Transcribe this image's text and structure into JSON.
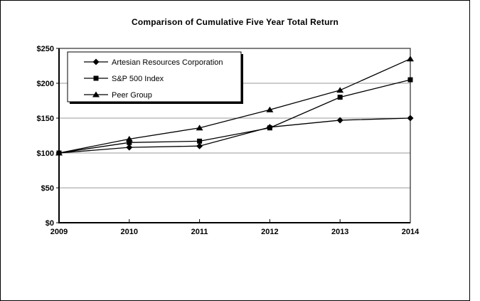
{
  "title": "Comparison of Cumulative Five Year Total Return",
  "chart_data": {
    "type": "line",
    "title": "Comparison of Cumulative Five Year Total Return",
    "categories": [
      "2009",
      "2010",
      "2011",
      "2012",
      "2013",
      "2014"
    ],
    "series": [
      {
        "name": "Artesian Resources Corporation",
        "marker": "diamond",
        "values": [
          100,
          108,
          110,
          137,
          147,
          150
        ]
      },
      {
        "name": "S&P 500 Index",
        "marker": "square",
        "values": [
          100,
          115,
          117,
          136,
          180,
          205
        ]
      },
      {
        "name": "Peer Group",
        "marker": "triangle",
        "values": [
          100,
          120,
          136,
          162,
          190,
          235
        ]
      }
    ],
    "xlabel": "",
    "ylabel": "",
    "ylim": [
      0,
      250
    ],
    "ytick_step": 50,
    "ytick_prefix": "$",
    "grid": true,
    "legend_position": "top-left-inside",
    "colors": {
      "line": "#000000",
      "grid": "#999999",
      "axis": "#000000",
      "text": "#000000",
      "background": "#ffffff",
      "legend_shadow": "#000000"
    }
  }
}
